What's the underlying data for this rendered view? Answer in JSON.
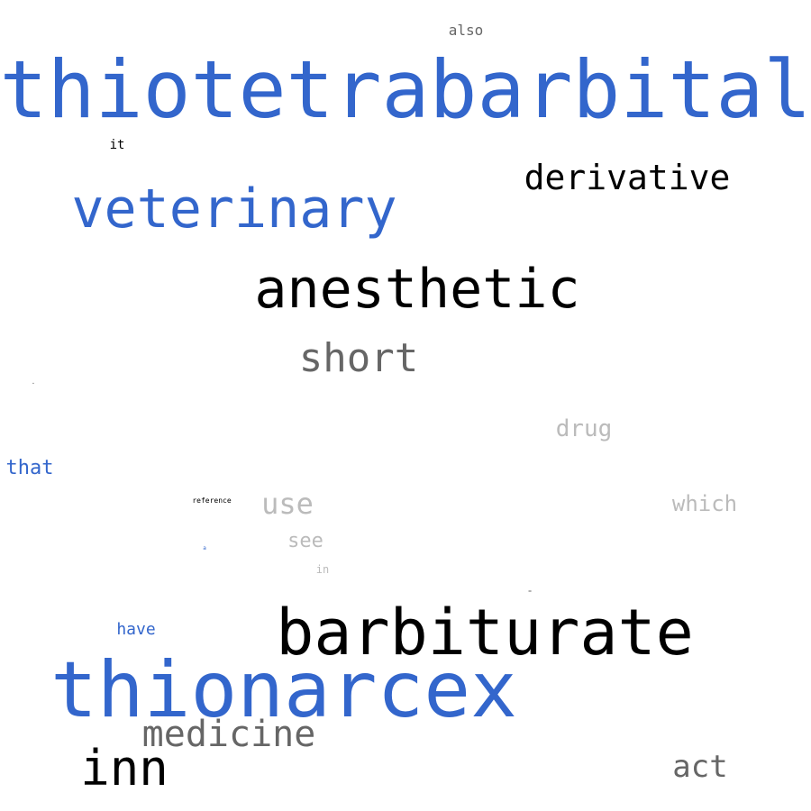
{
  "colors": {
    "blue": "#3366cc",
    "black": "#000000",
    "dark_gray": "#666666",
    "light_gray": "#bbbbbb",
    "background": "#ffffff"
  },
  "words": {
    "thiotetrabarbital": "thiotetrabarbital",
    "also": "also",
    "it": "it",
    "derivative": "derivative",
    "veterinary": "veterinary",
    "anesthetic": "anesthetic",
    "short": "short",
    "tiny_mark_1": "•",
    "drug": "drug",
    "that": "that",
    "reference": "reference",
    "use": "use",
    "which": "which",
    "see": "see",
    "tiny_mark_2": "a",
    "in": "in",
    "tiny_mark_3": "=",
    "barbiturate": "barbiturate",
    "have": "have",
    "thionarcex": "thionarcex",
    "medicine": "medicine",
    "inn": "inn",
    "act": "act"
  }
}
